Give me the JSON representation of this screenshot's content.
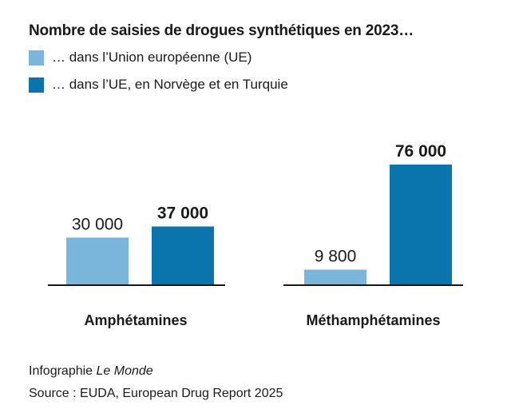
{
  "title": "Nombre de saisies de drogues synthétiques en 2023…",
  "chart_data": {
    "type": "bar",
    "categories": [
      "Amphétamines",
      "Méthamphétamines"
    ],
    "series": [
      {
        "name": "… dans l’Union européenne (UE)",
        "values": [
          30000,
          9800
        ],
        "labels": [
          "30 000",
          "9 800"
        ],
        "color": "#7ab6db",
        "bold": false
      },
      {
        "name": "… dans l’UE, en Norvège et en Turquie",
        "values": [
          37000,
          76000
        ],
        "labels": [
          "37 000",
          "76 000"
        ],
        "color": "#0a75ad",
        "bold": true
      }
    ],
    "ylim": [
      0,
      76000
    ],
    "grid": false,
    "legend_position": "top-left"
  },
  "credit": {
    "prefix": "Infographie ",
    "publication": "Le Monde"
  },
  "source": "Source : EUDA, European Drug Report 2025"
}
